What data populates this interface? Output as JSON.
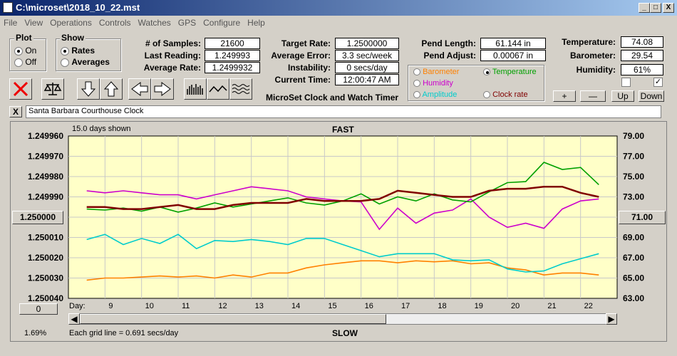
{
  "window": {
    "title": "C:\\microset\\2018_10_22.mst",
    "min": "_",
    "max": "□",
    "close": "X"
  },
  "menu": [
    "File",
    "View",
    "Operations",
    "Controls",
    "Watches",
    "GPS",
    "Configure",
    "Help"
  ],
  "plot": {
    "title": "Plot",
    "on": "On",
    "off": "Off"
  },
  "show": {
    "title": "Show",
    "rates": "Rates",
    "averages": "Averages"
  },
  "stats": [
    {
      "label": "# of Samples:",
      "value": "21600"
    },
    {
      "label": "Last Reading:",
      "value": "1.249993"
    },
    {
      "label": "Average Rate:",
      "value": "1.2499932"
    }
  ],
  "timing": [
    {
      "label": "Target Rate:",
      "value": "1.2500000"
    },
    {
      "label": "Average Error:",
      "value": "3.3 sec/week"
    },
    {
      "label": "Instability:",
      "value": "0 secs/day"
    },
    {
      "label": "Current Time:",
      "value": "12:00:47 AM"
    }
  ],
  "app_label": "MicroSet Clock and Watch Timer",
  "pend": [
    {
      "label": "Pend Length:",
      "value": "61.144 in"
    },
    {
      "label": "Pend Adjust:",
      "value": "0.00067 in"
    }
  ],
  "env": [
    {
      "label": "Temperature:",
      "value": "74.08"
    },
    {
      "label": "Barometer:",
      "value": "29.54"
    },
    {
      "label": "Humidity:",
      "value": "61%"
    }
  ],
  "plot_select": [
    {
      "label": "Barometer",
      "color": "#ff8000",
      "selected": false
    },
    {
      "label": "Temperature",
      "color": "#00a000",
      "selected": true
    },
    {
      "label": "Humidity",
      "color": "#cc00cc",
      "selected": false
    },
    {
      "label": "Clock rate",
      "color": "#800000",
      "selected": false
    },
    {
      "label": "Amplitude",
      "color": "#00cccc",
      "selected": false
    }
  ],
  "env_buttons": {
    "plus": "+",
    "minus": "—",
    "up": "Up",
    "down": "Down"
  },
  "checkboxes": [
    "",
    "✓"
  ],
  "clock_name": "Santa Barbara Courthouse Clock",
  "clock_close": "X",
  "chart": {
    "days_shown": "15.0 days shown",
    "top_label": "FAST",
    "bottom_label": "SLOW",
    "left_ticks": [
      "1.249960",
      "1.249970",
      "1.249980",
      "1.249990",
      "1.250000",
      "1.250010",
      "1.250020",
      "1.250030",
      "1.250040"
    ],
    "right_ticks": [
      "79.00",
      "77.00",
      "75.00",
      "73.00",
      "71.00",
      "69.00",
      "67.00",
      "65.00",
      "63.00"
    ],
    "x_labels": [
      "9",
      "10",
      "11",
      "12",
      "13",
      "14",
      "15",
      "16",
      "17",
      "18",
      "19",
      "20",
      "21",
      "22"
    ],
    "day_label": "Day:",
    "left_scroll": "0",
    "percent": "1.69%",
    "grid_note": "Each grid line = 0.691 secs/day"
  },
  "chart_data": {
    "type": "line",
    "x": [
      8.5,
      9,
      9.5,
      10,
      10.5,
      11,
      11.5,
      12,
      12.5,
      13,
      13.5,
      14,
      14.5,
      15,
      15.5,
      16,
      16.5,
      17,
      17.5,
      18,
      18.5,
      19,
      19.5,
      20,
      20.5,
      21,
      21.5,
      22,
      22.5
    ],
    "series": [
      {
        "color": "#800000",
        "values": [
          1.249995,
          1.249995,
          1.249996,
          1.249996,
          1.249995,
          1.249994,
          1.249996,
          1.249996,
          1.249994,
          1.249993,
          1.249993,
          1.249993,
          1.249991,
          1.249992,
          1.249992,
          1.249992,
          1.249991,
          1.249987,
          1.249988,
          1.249989,
          1.24999,
          1.24999,
          1.249987,
          1.249986,
          1.249986,
          1.249985,
          1.249985,
          1.249988,
          1.24999
        ]
      },
      {
        "color": "#00a000",
        "values": [
          71.8,
          71.7,
          71.9,
          71.6,
          72.0,
          71.5,
          71.9,
          72.4,
          72.0,
          72.3,
          72.6,
          72.9,
          72.4,
          72.2,
          72.6,
          73.3,
          72.3,
          73.0,
          72.6,
          73.3,
          72.7,
          72.5,
          73.5,
          74.4,
          74.5,
          76.4,
          75.7,
          75.9,
          74.2
        ]
      },
      {
        "color": "#cc00cc",
        "values": [
          73.6,
          73.4,
          73.6,
          73.4,
          73.2,
          73.2,
          72.8,
          73.2,
          73.6,
          74.0,
          73.8,
          73.6,
          73.0,
          72.8,
          72.6,
          72.5,
          69.8,
          71.9,
          70.4,
          71.4,
          71.7,
          72.8,
          71.0,
          70.0,
          70.4,
          69.9,
          71.8,
          72.6,
          72.8
        ]
      },
      {
        "color": "#00cccc",
        "values": [
          68.8,
          69.3,
          68.3,
          68.9,
          68.4,
          69.3,
          67.9,
          68.7,
          68.6,
          68.8,
          68.6,
          68.3,
          68.9,
          68.9,
          68.3,
          67.7,
          67.1,
          67.4,
          67.4,
          67.4,
          66.8,
          66.7,
          66.8,
          65.9,
          65.6,
          65.7,
          66.4,
          66.9,
          67.4
        ]
      },
      {
        "color": "#ff8000",
        "values": [
          64.8,
          65.0,
          65.0,
          65.1,
          65.2,
          65.1,
          65.2,
          65.0,
          65.3,
          65.1,
          65.5,
          65.5,
          66.0,
          66.3,
          66.5,
          66.7,
          66.7,
          66.5,
          66.7,
          66.6,
          66.7,
          66.4,
          66.5,
          66.0,
          65.8,
          65.3,
          65.5,
          65.5,
          65.3
        ]
      }
    ],
    "ylim_left": [
      1.24996,
      1.25004
    ],
    "ylim_right": [
      63,
      79
    ]
  }
}
